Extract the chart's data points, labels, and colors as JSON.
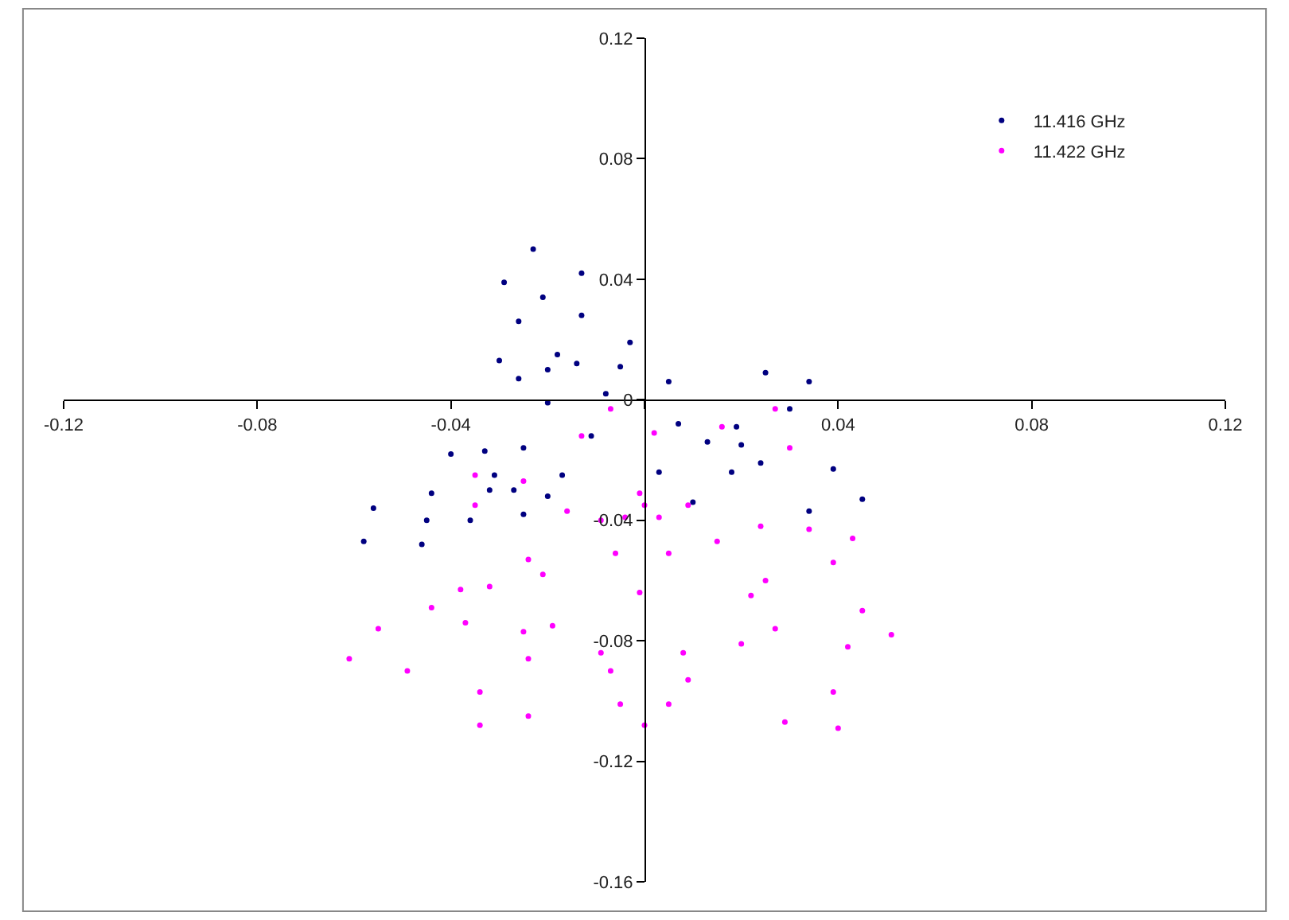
{
  "chart_data": {
    "type": "scatter",
    "marker": "circle",
    "legend": "top right",
    "grid": false,
    "xlim": [
      -0.12,
      0.12
    ],
    "ylim": [
      -0.16,
      0.12
    ],
    "xticks": [
      -0.12,
      -0.08,
      -0.04,
      {
        "value": 0,
        "label": null
      },
      0.04,
      0.08,
      0.12
    ],
    "yticks": [
      -0.16,
      -0.12,
      -0.08,
      -0.04,
      0,
      0.04,
      0.08,
      0.12
    ],
    "series": [
      {
        "name": "11.416 GHz",
        "color": "#000080",
        "x": [
          -0.011,
          -0.03,
          -0.029,
          -0.023,
          -0.013,
          -0.003,
          -0.026,
          -0.026,
          -0.021,
          -0.013,
          -0.005,
          -0.02,
          -0.02,
          -0.018,
          -0.014,
          -0.008,
          0.005,
          0.025,
          0.034,
          0.03,
          0.013,
          0.019,
          0.039,
          0.045,
          0.034,
          0.01,
          0.007,
          0.02,
          0.024,
          0.018,
          0.003,
          -0.025,
          -0.046,
          -0.058,
          -0.056,
          -0.04,
          -0.02,
          -0.036,
          -0.045,
          -0.044,
          -0.033,
          -0.017,
          -0.027,
          -0.032,
          -0.031,
          -0.025
        ],
        "values": [
          -0.012,
          0.013,
          0.039,
          0.05,
          0.042,
          0.019,
          0.007,
          0.026,
          0.034,
          0.028,
          0.011,
          -0.001,
          0.01,
          0.015,
          0.012,
          0.002,
          0.006,
          0.009,
          0.006,
          -0.003,
          -0.014,
          -0.009,
          -0.023,
          -0.033,
          -0.037,
          -0.034,
          -0.008,
          -0.015,
          -0.021,
          -0.024,
          -0.024,
          -0.038,
          -0.048,
          -0.047,
          -0.036,
          -0.018,
          -0.032,
          -0.04,
          -0.04,
          -0.031,
          -0.017,
          -0.025,
          -0.03,
          -0.03,
          -0.025,
          -0.016
        ]
      },
      {
        "name": "11.422 GHz",
        "color": "#ff00ff",
        "x": [
          -0.001,
          -0.006,
          -0.004,
          0.0,
          0.003,
          0.005,
          -0.001,
          0.016,
          0.027,
          0.03,
          0.024,
          0.015,
          0.034,
          0.043,
          0.039,
          0.022,
          0.025,
          0.045,
          0.051,
          0.042,
          0.02,
          0.027,
          0.039,
          0.04,
          0.029,
          0.009,
          0.008,
          0.005,
          0.0,
          -0.005,
          -0.009,
          -0.007,
          -0.024,
          -0.034,
          -0.034,
          -0.025,
          -0.024,
          -0.049,
          -0.061,
          -0.055,
          -0.032,
          -0.019,
          -0.037,
          -0.044,
          -0.038,
          -0.021,
          -0.024,
          -0.035,
          -0.035,
          -0.025,
          -0.009,
          -0.016,
          -0.013,
          -0.007,
          0.002,
          0.009
        ],
        "values": [
          -0.064,
          -0.051,
          -0.039,
          -0.035,
          -0.039,
          -0.051,
          -0.031,
          -0.009,
          -0.003,
          -0.016,
          -0.042,
          -0.047,
          -0.043,
          -0.046,
          -0.054,
          -0.065,
          -0.06,
          -0.07,
          -0.078,
          -0.082,
          -0.081,
          -0.076,
          -0.097,
          -0.109,
          -0.107,
          -0.093,
          -0.084,
          -0.101,
          -0.108,
          -0.101,
          -0.084,
          -0.09,
          -0.105,
          -0.108,
          -0.097,
          -0.077,
          -0.086,
          -0.09,
          -0.086,
          -0.076,
          -0.062,
          -0.075,
          -0.074,
          -0.069,
          -0.063,
          -0.058,
          -0.053,
          -0.035,
          -0.025,
          -0.027,
          -0.04,
          -0.037,
          -0.012,
          -0.003,
          -0.011,
          -0.035
        ]
      }
    ]
  }
}
